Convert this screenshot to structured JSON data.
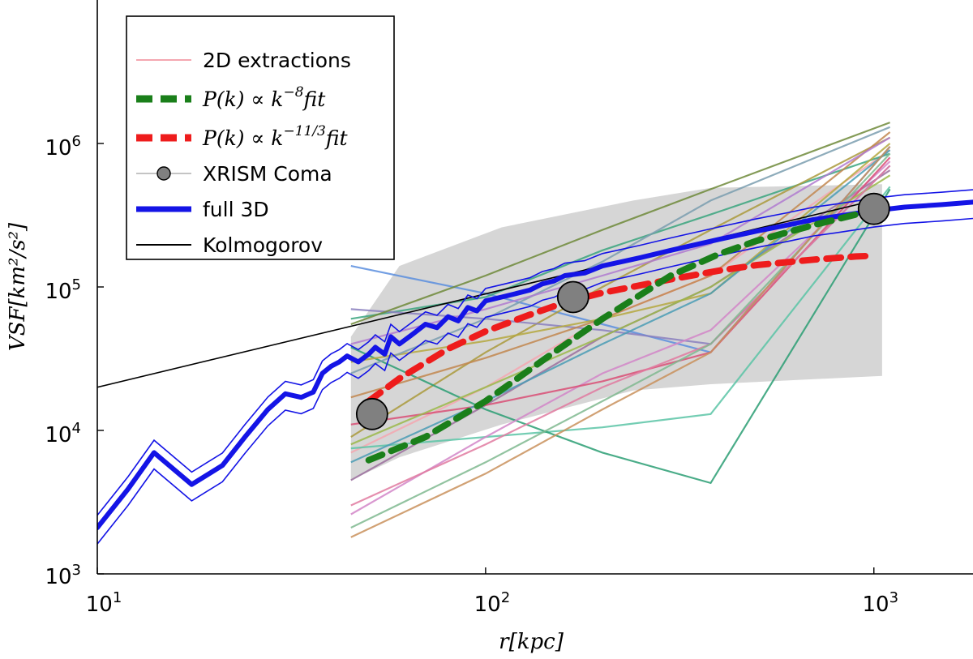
{
  "chart_data": {
    "type": "line",
    "title": "",
    "xlabel": "r[kpc]",
    "ylabel": "VSF[km²/s²]",
    "x_scale": "log",
    "y_scale": "log",
    "xlim": [
      10,
      1800
    ],
    "ylim": [
      1000,
      10000000
    ],
    "x_ticks": [
      {
        "value": 10,
        "base": "10",
        "exp": "1"
      },
      {
        "value": 100,
        "base": "10",
        "exp": "2"
      },
      {
        "value": 1000,
        "base": "10",
        "exp": "3"
      }
    ],
    "y_ticks": [
      {
        "value": 1000,
        "base": "10",
        "exp": "3"
      },
      {
        "value": 10000,
        "base": "10",
        "exp": "4"
      },
      {
        "value": 100000,
        "base": "10",
        "exp": "5"
      },
      {
        "value": 1000000,
        "base": "10",
        "exp": "6"
      }
    ],
    "grid": false,
    "legend_position": "top-left",
    "legend": [
      {
        "key": "extractions",
        "label": "2D extractions",
        "style": "thin",
        "color": "#f4a7b0"
      },
      {
        "key": "fit8",
        "label_parts": [
          "P(k) ∝ k",
          "−8",
          "fit"
        ],
        "style": "dashed",
        "color": "#1a7f1a"
      },
      {
        "key": "fit113",
        "label_parts": [
          "P(k) ∝ k",
          "−11/3",
          "fit"
        ],
        "style": "dashed",
        "color": "#ee1c1c"
      },
      {
        "key": "xrism",
        "label": "XRISM Coma",
        "style": "marker",
        "color": "#808080"
      },
      {
        "key": "full3d",
        "label": "full 3D",
        "style": "thick",
        "color": "#1414e6"
      },
      {
        "key": "kolmogorov",
        "label": "Kolmogorov",
        "style": "thin",
        "color": "#000000"
      }
    ],
    "shaded_band": {
      "color": "#d6d6d6",
      "upper": [
        [
          45,
          45000
        ],
        [
          60,
          140000
        ],
        [
          110,
          260000
        ],
        [
          240,
          400000
        ],
        [
          380,
          490000
        ],
        [
          1050,
          520000
        ]
      ],
      "lower": [
        [
          45,
          4500
        ],
        [
          60,
          6500
        ],
        [
          110,
          11000
        ],
        [
          240,
          19000
        ],
        [
          380,
          21000
        ],
        [
          1050,
          24000
        ]
      ]
    },
    "extractions": {
      "x": [
        45,
        100,
        200,
        380,
        1100
      ],
      "series": [
        {
          "color": "#f4a7b0",
          "values": [
            7000,
            20000,
            60000,
            120000,
            900000
          ]
        },
        {
          "color": "#5a8ede",
          "values": [
            140000,
            90000,
            55000,
            35000,
            950000
          ]
        },
        {
          "color": "#3aa57e",
          "values": [
            60000,
            85000,
            180000,
            320000,
            850000
          ]
        },
        {
          "color": "#aa9a3c",
          "values": [
            9000,
            35000,
            100000,
            250000,
            1100000
          ]
        },
        {
          "color": "#9b6f9e",
          "values": [
            4500,
            15000,
            45000,
            100000,
            650000
          ]
        },
        {
          "color": "#5ac4a6",
          "values": [
            7500,
            9000,
            10500,
            13000,
            500000
          ]
        },
        {
          "color": "#2a9e73",
          "values": [
            38000,
            14000,
            7000,
            4300,
            480000
          ]
        },
        {
          "color": "#8a7fbe",
          "values": [
            70000,
            60000,
            50000,
            40000,
            700000
          ]
        },
        {
          "color": "#d286c8",
          "values": [
            2600,
            9000,
            25000,
            50000,
            750000
          ]
        },
        {
          "color": "#b5a840",
          "values": [
            30000,
            42000,
            60000,
            90000,
            1000000
          ]
        },
        {
          "color": "#d94f76",
          "values": [
            11000,
            15000,
            22000,
            35000,
            800000
          ]
        },
        {
          "color": "#7a9eaf",
          "values": [
            25000,
            60000,
            150000,
            400000,
            1300000
          ]
        },
        {
          "color": "#c2874f",
          "values": [
            17000,
            32000,
            60000,
            120000,
            1200000
          ]
        },
        {
          "color": "#9bb84a",
          "values": [
            8000,
            20000,
            45000,
            100000,
            600000
          ]
        },
        {
          "color": "#4a9cb5",
          "values": [
            6000,
            16000,
            40000,
            90000,
            900000
          ]
        },
        {
          "color": "#e07aa0",
          "values": [
            3000,
            8000,
            20000,
            40000,
            700000
          ]
        },
        {
          "color": "#6e8a3a",
          "values": [
            55000,
            120000,
            250000,
            480000,
            1400000
          ]
        },
        {
          "color": "#7fb88f",
          "values": [
            2100,
            6000,
            16000,
            40000,
            850000
          ]
        },
        {
          "color": "#b07bd0",
          "values": [
            40000,
            70000,
            120000,
            200000,
            1100000
          ]
        },
        {
          "color": "#c9915c",
          "values": [
            1800,
            5000,
            14000,
            35000,
            950000
          ]
        }
      ]
    },
    "kolmogorov": {
      "x": [
        10,
        1000
      ],
      "y": [
        20000,
        400000
      ]
    },
    "full3d": {
      "x": [
        10,
        12,
        14,
        17.5,
        21,
        24,
        27.5,
        30.5,
        33.5,
        36,
        38,
        40,
        42,
        44,
        47,
        50,
        52,
        55,
        57,
        60,
        65,
        70,
        75,
        80,
        85,
        90,
        95,
        100,
        110,
        120,
        130,
        140,
        150,
        160,
        180,
        200,
        250,
        300,
        400,
        500,
        600,
        700,
        800,
        1000,
        1200,
        1500,
        1800
      ],
      "y": [
        2100,
        3900,
        7000,
        4200,
        5700,
        9000,
        14000,
        18000,
        17000,
        18500,
        25000,
        28000,
        30000,
        33000,
        30000,
        34000,
        38000,
        34000,
        45000,
        40000,
        47000,
        55000,
        52000,
        62000,
        58000,
        72000,
        68000,
        80000,
        85000,
        90000,
        95000,
        105000,
        110000,
        120000,
        125000,
        140000,
        160000,
        180000,
        215000,
        245000,
        270000,
        295000,
        310000,
        340000,
        360000,
        375000,
        390000
      ]
    },
    "fit8": {
      "x": [
        50,
        70,
        100,
        150,
        200,
        300,
        400,
        500,
        700,
        900,
        1000
      ],
      "y": [
        6200,
        9000,
        16000,
        35000,
        60000,
        120000,
        170000,
        210000,
        270000,
        320000,
        350000
      ]
    },
    "fit113": {
      "x": [
        50,
        60,
        80,
        100,
        130,
        160,
        200,
        300,
        400,
        500,
        700,
        900,
        1000
      ],
      "y": [
        16000,
        23000,
        37000,
        49000,
        64000,
        78000,
        91000,
        113000,
        130000,
        142000,
        155000,
        163000,
        165000
      ]
    },
    "xrism": {
      "x": [
        51,
        168,
        1000
      ],
      "y": [
        13000,
        85000,
        350000
      ]
    }
  }
}
